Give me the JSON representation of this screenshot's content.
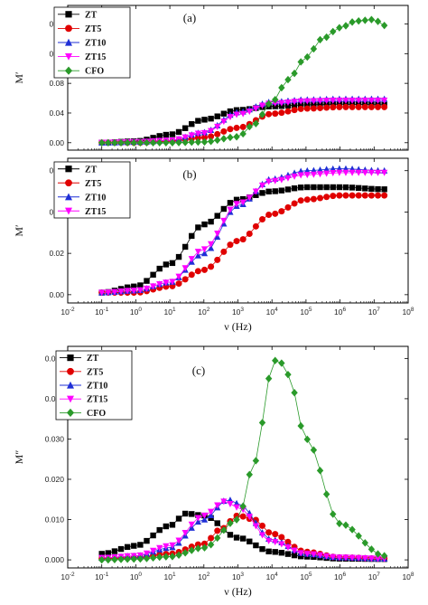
{
  "chart_data": [
    {
      "type": "scatter",
      "panel_tag": "(a)",
      "ylabel": "M′",
      "xlabel": "",
      "xscale": "log",
      "xlim": [
        0.01,
        100000000
      ],
      "ylim": [
        -0.01,
        0.185
      ],
      "yticks": [
        "0.00",
        "0.04",
        "0.08",
        "0.12",
        "0.16"
      ],
      "xtick_labels_visible": false,
      "legend_position": "top-left",
      "series": [
        {
          "name": "ZT",
          "color": "#000000",
          "marker": "square",
          "x": [
            0.1,
            1,
            10,
            100,
            1000,
            10000,
            100000,
            1000000,
            20000000
          ],
          "y": [
            0.0,
            0.002,
            0.011,
            0.031,
            0.044,
            0.049,
            0.051,
            0.052,
            0.051
          ]
        },
        {
          "name": "ZT5",
          "color": "#e00000",
          "marker": "circle",
          "x": [
            0.1,
            1,
            10,
            100,
            1000,
            10000,
            100000,
            1000000,
            20000000
          ],
          "y": [
            0.0,
            0.0,
            0.002,
            0.007,
            0.02,
            0.039,
            0.046,
            0.048,
            0.048
          ]
        },
        {
          "name": "ZT10",
          "color": "#1f2fd6",
          "marker": "triangle-up",
          "x": [
            0.1,
            1,
            10,
            100,
            1000,
            10000,
            100000,
            1000000,
            20000000
          ],
          "y": [
            0.0,
            0.001,
            0.003,
            0.014,
            0.041,
            0.055,
            0.058,
            0.059,
            0.059
          ]
        },
        {
          "name": "ZT15",
          "color": "#ff00ff",
          "marker": "triangle-down",
          "x": [
            0.1,
            1,
            10,
            100,
            1000,
            10000,
            100000,
            1000000,
            20000000
          ],
          "y": [
            0.0,
            0.001,
            0.003,
            0.013,
            0.038,
            0.053,
            0.056,
            0.057,
            0.057
          ]
        },
        {
          "name": "CFO",
          "color": "#2a9a2a",
          "marker": "diamond",
          "x": [
            0.1,
            1,
            10,
            100,
            1000,
            3000,
            10000,
            30000,
            100000,
            300000,
            1000000,
            3000000,
            10000000,
            20000000
          ],
          "y": [
            0.0,
            0.0,
            0.0,
            0.001,
            0.008,
            0.025,
            0.055,
            0.085,
            0.115,
            0.14,
            0.155,
            0.164,
            0.166,
            0.158
          ]
        }
      ]
    },
    {
      "type": "scatter",
      "panel_tag": "(b)",
      "ylabel": "M′",
      "xlabel": "ν (Hz)",
      "xscale": "log",
      "xlim": [
        0.01,
        100000000
      ],
      "ylim": [
        -0.004,
        0.066
      ],
      "yticks": [
        "0.00",
        "0.02",
        "0.04",
        "0.06"
      ],
      "xticks": [
        "10-2",
        "10-1",
        "100",
        "101",
        "102",
        "103",
        "104",
        "105",
        "106",
        "107",
        "108"
      ],
      "legend_position": "top-left",
      "series": [
        {
          "name": "ZT",
          "color": "#000000",
          "marker": "square",
          "x": [
            0.1,
            1,
            10,
            100,
            1000,
            10000,
            100000,
            1000000,
            20000000
          ],
          "y": [
            0.001,
            0.004,
            0.015,
            0.034,
            0.046,
            0.05,
            0.052,
            0.052,
            0.051
          ]
        },
        {
          "name": "ZT5",
          "color": "#e00000",
          "marker": "circle",
          "x": [
            0.1,
            1,
            10,
            100,
            1000,
            10000,
            100000,
            1000000,
            20000000
          ],
          "y": [
            0.001,
            0.001,
            0.004,
            0.012,
            0.026,
            0.039,
            0.046,
            0.048,
            0.048
          ]
        },
        {
          "name": "ZT10",
          "color": "#1f2fd6",
          "marker": "triangle-up",
          "x": [
            0.1,
            1,
            10,
            100,
            1000,
            10000,
            100000,
            1000000,
            20000000
          ],
          "y": [
            0.001,
            0.002,
            0.006,
            0.02,
            0.043,
            0.056,
            0.06,
            0.061,
            0.06
          ]
        },
        {
          "name": "ZT15",
          "color": "#ff00ff",
          "marker": "triangle-down",
          "x": [
            0.1,
            1,
            10,
            100,
            1000,
            10000,
            100000,
            1000000,
            20000000
          ],
          "y": [
            0.001,
            0.002,
            0.006,
            0.022,
            0.044,
            0.055,
            0.058,
            0.059,
            0.059
          ]
        }
      ]
    },
    {
      "type": "line",
      "panel_tag": "(c)",
      "ylabel": "M″",
      "xlabel": "ν (Hz)",
      "xscale": "log",
      "xlim": [
        0.01,
        100000000
      ],
      "ylim": [
        -0.002,
        0.053
      ],
      "yticks": [
        "0.000",
        "0.010",
        "0.020",
        "0.030",
        "0.040",
        "0.050"
      ],
      "xticks": [
        "10-2",
        "10-1",
        "100",
        "101",
        "102",
        "103",
        "104",
        "105",
        "106",
        "107",
        "108"
      ],
      "legend_position": "top-left",
      "series": [
        {
          "name": "ZT",
          "color": "#000000",
          "marker": "square",
          "x": [
            0.1,
            1,
            10,
            30,
            100,
            1000,
            10000,
            100000,
            1000000,
            20000000
          ],
          "y": [
            0.0015,
            0.0035,
            0.0085,
            0.0115,
            0.011,
            0.0055,
            0.002,
            0.0008,
            0.0003,
            0.0002
          ]
        },
        {
          "name": "ZT5",
          "color": "#e00000",
          "marker": "circle",
          "x": [
            0.1,
            1,
            10,
            100,
            300,
            1000,
            3000,
            10000,
            100000,
            1000000,
            20000000
          ],
          "y": [
            0.0003,
            0.0005,
            0.0015,
            0.004,
            0.0075,
            0.011,
            0.01,
            0.0065,
            0.002,
            0.0006,
            0.0003
          ]
        },
        {
          "name": "ZT10",
          "color": "#1f2fd6",
          "marker": "triangle-up",
          "x": [
            0.1,
            1,
            10,
            100,
            500,
            1000,
            10000,
            100000,
            1000000,
            20000000
          ],
          "y": [
            0.0005,
            0.001,
            0.003,
            0.01,
            0.015,
            0.014,
            0.005,
            0.0015,
            0.0006,
            0.0003
          ]
        },
        {
          "name": "ZT15",
          "color": "#ff00ff",
          "marker": "triangle-down",
          "x": [
            0.1,
            1,
            10,
            100,
            400,
            1000,
            10000,
            100000,
            1000000,
            20000000
          ],
          "y": [
            0.0005,
            0.001,
            0.0035,
            0.011,
            0.0145,
            0.013,
            0.0045,
            0.0015,
            0.0006,
            0.0003
          ]
        },
        {
          "name": "CFO",
          "color": "#2a9a2a",
          "marker": "diamond",
          "x": [
            0.1,
            1,
            10,
            100,
            1000,
            3000,
            10000,
            14000,
            30000,
            100000,
            1000000,
            20000000
          ],
          "y": [
            0.0,
            0.0002,
            0.0008,
            0.003,
            0.01,
            0.024,
            0.047,
            0.0505,
            0.046,
            0.03,
            0.009,
            0.001
          ]
        }
      ]
    }
  ]
}
